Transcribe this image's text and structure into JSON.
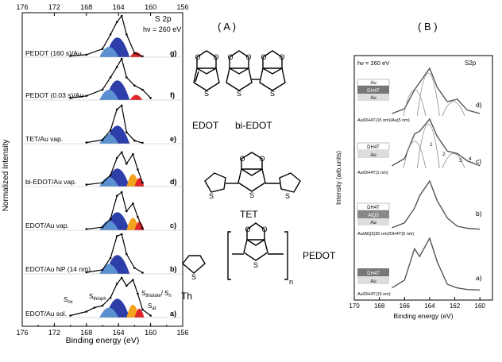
{
  "panelA": {
    "label": "( A )",
    "xlabel": "Binding energy (eV)",
    "ylabel": "Normalized Intensity",
    "xticks": [
      "176",
      "172",
      "168",
      "164",
      "160",
      "156"
    ],
    "xticks_top": [
      "176",
      "172",
      "168",
      "164",
      "160",
      "156"
    ],
    "title": "S 2p",
    "hv": "hν = 260 eV",
    "traces": [
      {
        "name": "PEDOT (160 s)/Au",
        "letter": "g)"
      },
      {
        "name": "PEDOT (0.03 s)/Au",
        "letter": "f)"
      },
      {
        "name": "TET/Au vap.",
        "letter": "e)"
      },
      {
        "name": "bi-EDOT/Au vap.",
        "letter": "d)"
      },
      {
        "name": "EDOT/Au vap.",
        "letter": "c)"
      },
      {
        "name": "EDOT/Au NP (14 nm)",
        "letter": "b)"
      },
      {
        "name": "EDOT/Au sol.",
        "letter": "a)"
      }
    ],
    "annotations": {
      "sox": "S",
      "sox_sub": "ox",
      "sthioph": "S",
      "sthioph_sub": "thioph",
      "sthiolate": "S",
      "sthiolate_sub": "thiolate",
      "sn": "/ S",
      "sn_sub": "n",
      "sat": "S",
      "sat_sub": "at"
    }
  },
  "molecules": {
    "edot": "EDOT",
    "biedot": "bi-EDOT",
    "tet": "TET",
    "th": "Th",
    "pedot": "PEDOT",
    "n": "n",
    "s": "S",
    "o": "O"
  },
  "panelB": {
    "label": "( B )",
    "xlabel": "Binding energy (eV)",
    "ylabel": "Intensity (arb.units)",
    "xticks": [
      "170",
      "168",
      "166",
      "164",
      "162",
      "160"
    ],
    "hv": "hν = 260 eV",
    "title": "S2p",
    "traces": [
      {
        "letter": "d)",
        "caption": "Au/DH4T(15 nm)/Au(5 nm)",
        "layers": [
          "Au",
          "DH4T",
          "Au"
        ]
      },
      {
        "letter": "c)",
        "caption": "Au/DH4T(1 nm)",
        "layers": [
          "DH4T",
          "Au"
        ]
      },
      {
        "letter": "b)",
        "caption": "Au/AlQ3(30 nm)/DH4T(5 nm)",
        "layers": [
          "DH4T",
          "AlQ3",
          "Au"
        ]
      },
      {
        "letter": "a)",
        "caption": "Au/DH4T(15 nm)",
        "layers": [
          "DH4T",
          "Au"
        ]
      }
    ],
    "peaks": [
      "1",
      "2",
      "3",
      "4"
    ]
  },
  "chart_data": [
    {
      "type": "line",
      "title": "S 2p",
      "xlabel": "Binding energy (eV)",
      "ylabel": "Normalized Intensity",
      "xlim": [
        176,
        156
      ],
      "series": [
        {
          "name": "PEDOT (160 s)/Au",
          "x": [
            170,
            168,
            166,
            165,
            164.2,
            163.6,
            163,
            162,
            161
          ],
          "y": [
            0.03,
            0.06,
            0.2,
            0.55,
            0.85,
            1.0,
            0.55,
            0.1,
            0.02
          ]
        },
        {
          "name": "PEDOT (0.03 s)/Au",
          "x": [
            170,
            168,
            166,
            165,
            164.2,
            163.6,
            163,
            162,
            161,
            160
          ],
          "y": [
            0.05,
            0.1,
            0.25,
            0.55,
            0.8,
            1.0,
            0.55,
            0.35,
            0.25,
            0.05
          ]
        },
        {
          "name": "TET/Au vap.",
          "x": [
            168,
            166,
            165,
            164.2,
            163.6,
            163,
            162,
            161
          ],
          "y": [
            0.03,
            0.1,
            0.35,
            0.9,
            1.0,
            0.3,
            0.08,
            0.02
          ]
        },
        {
          "name": "bi-EDOT/Au vap.",
          "x": [
            168,
            166,
            165,
            164.2,
            163.6,
            163,
            162.2,
            161.6,
            161
          ],
          "y": [
            0.05,
            0.1,
            0.3,
            0.75,
            0.9,
            0.6,
            0.85,
            0.45,
            0.1
          ]
        },
        {
          "name": "EDOT/Au vap.",
          "x": [
            168,
            166,
            165,
            164.2,
            163.6,
            163,
            162.2,
            161.6,
            161
          ],
          "y": [
            0.03,
            0.08,
            0.3,
            0.9,
            1.0,
            0.5,
            0.7,
            0.35,
            0.05
          ]
        },
        {
          "name": "EDOT/Au NP (14 nm)",
          "x": [
            168,
            166,
            165,
            164.2,
            163.6,
            163,
            162,
            161
          ],
          "y": [
            0.04,
            0.1,
            0.4,
            0.95,
            1.0,
            0.5,
            0.15,
            0.03
          ]
        },
        {
          "name": "EDOT/Au sol.",
          "x": [
            170,
            168,
            167,
            166,
            165,
            164.2,
            163.6,
            163,
            162.2,
            161.6,
            161,
            160
          ],
          "y": [
            0.05,
            0.15,
            0.25,
            0.3,
            0.5,
            0.85,
            1.0,
            0.8,
            0.95,
            0.6,
            0.2,
            0.05
          ]
        }
      ]
    },
    {
      "type": "line",
      "title": "S2p",
      "xlabel": "Binding energy (eV)",
      "ylabel": "Intensity (arb.units)",
      "xlim": [
        170,
        159
      ],
      "series": [
        {
          "name": "d)",
          "x": [
            167,
            166,
            165.2,
            164.8,
            164,
            163.4,
            162.6,
            161.8,
            161,
            160
          ],
          "y": [
            0.05,
            0.15,
            0.55,
            0.7,
            1.0,
            0.6,
            0.3,
            0.35,
            0.12,
            0.05
          ]
        },
        {
          "name": "c)",
          "x": [
            167,
            166,
            165.2,
            164.8,
            164,
            163.4,
            162.6,
            161.8,
            161,
            160
          ],
          "y": [
            0.05,
            0.2,
            0.7,
            0.75,
            1.0,
            0.65,
            0.35,
            0.3,
            0.15,
            0.05
          ]
        },
        {
          "name": "b)",
          "x": [
            167,
            166,
            165.2,
            164.8,
            164,
            163.4,
            162.6,
            161.8,
            161,
            160
          ],
          "y": [
            0.05,
            0.15,
            0.45,
            0.7,
            1.0,
            0.6,
            0.25,
            0.08,
            0.04,
            0.02
          ]
        },
        {
          "name": "a)",
          "x": [
            167,
            166,
            165.2,
            164.8,
            164,
            163.4,
            162.6,
            161.8,
            161,
            160
          ],
          "y": [
            0.05,
            0.2,
            0.8,
            0.65,
            1.0,
            0.55,
            0.12,
            0.05,
            0.02,
            0.01
          ]
        }
      ]
    }
  ]
}
